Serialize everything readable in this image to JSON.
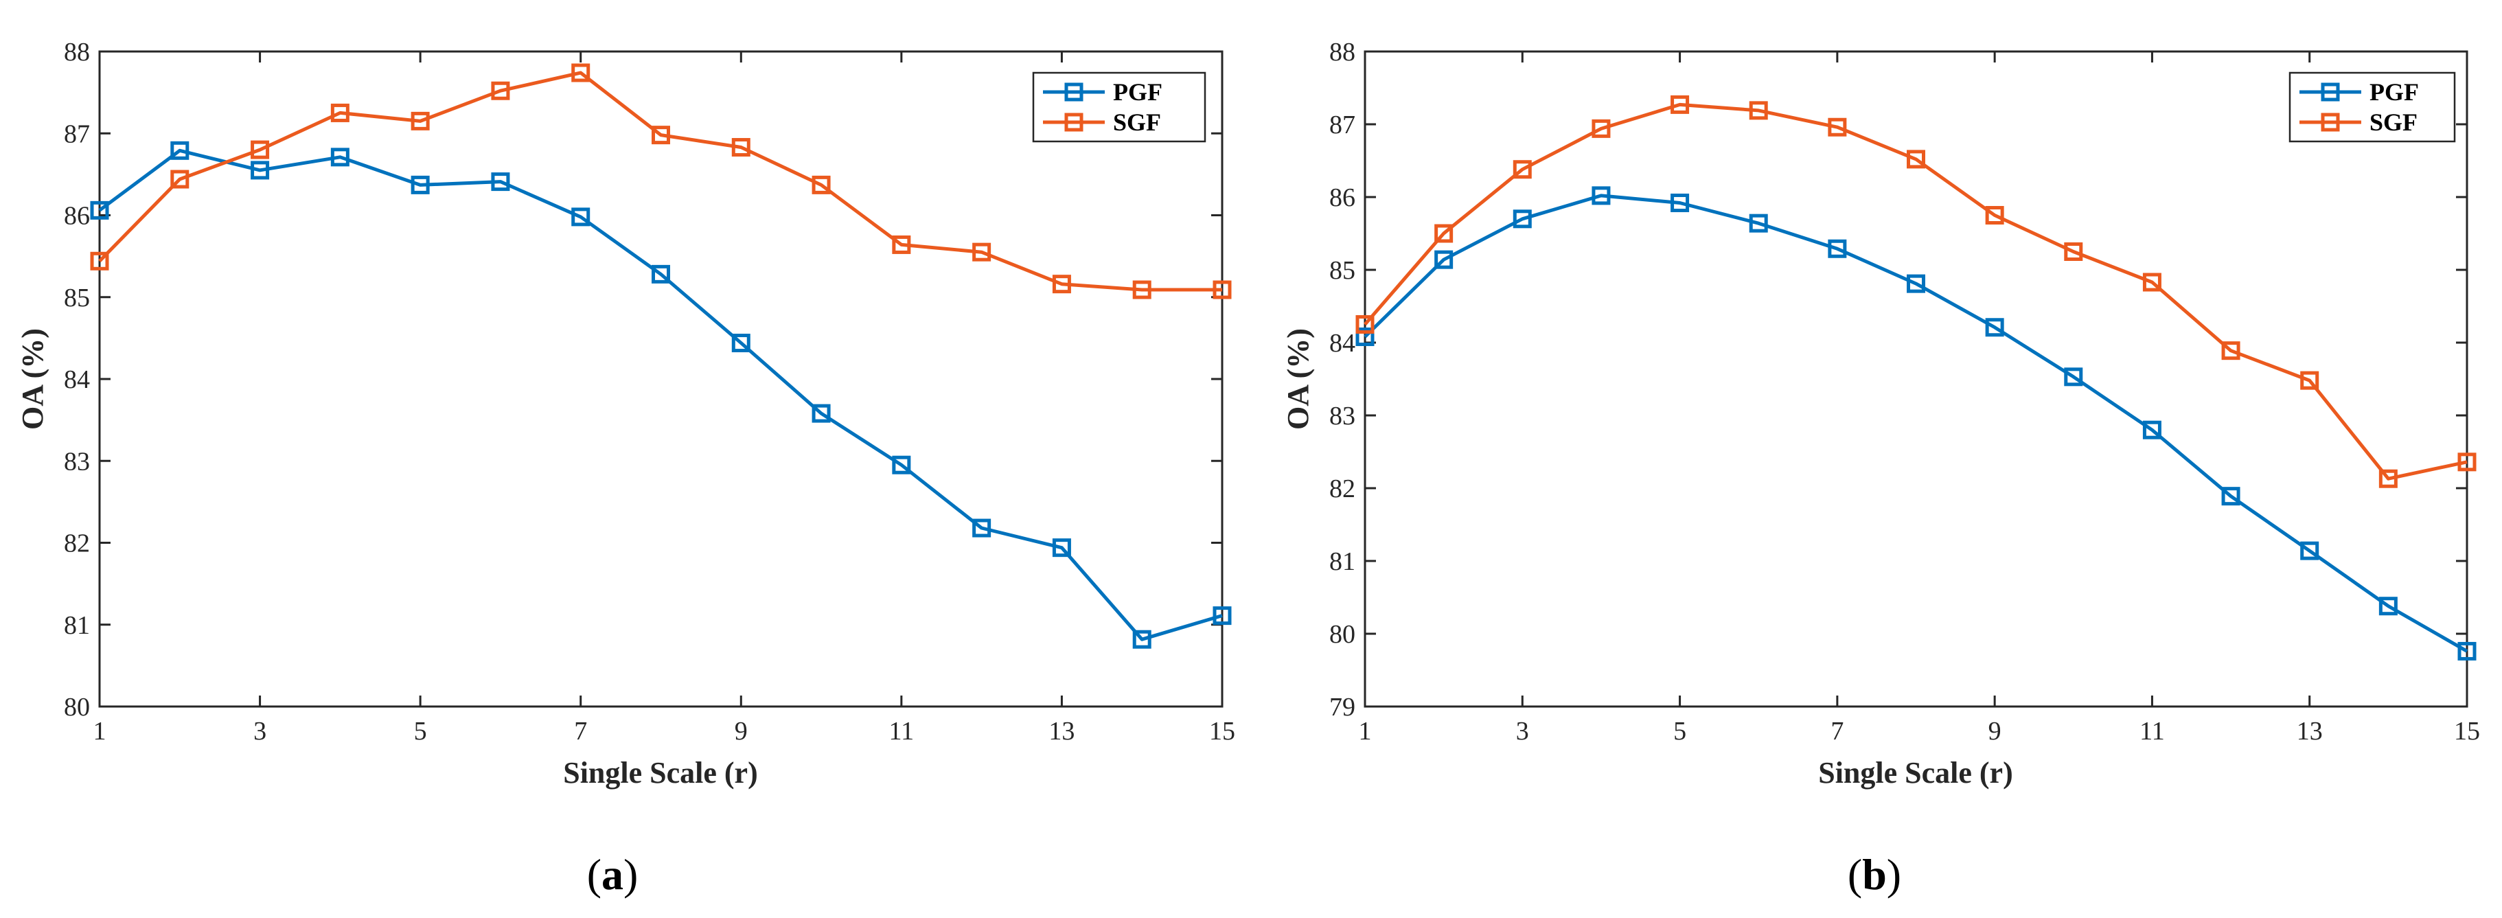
{
  "colors": {
    "PGF": "#0072BD",
    "SGF": "#EB5A1E"
  },
  "chart_data": [
    {
      "type": "line",
      "panel": "a",
      "caption": {
        "open": "(",
        "letter": "a",
        "close": ")"
      },
      "xlabel": "Single Scale (r)",
      "ylabel": "OA (%)",
      "xlim": [
        1,
        15
      ],
      "ylim": [
        80,
        88
      ],
      "xticks": [
        1,
        3,
        5,
        7,
        9,
        11,
        13,
        15
      ],
      "yticks": [
        80,
        81,
        82,
        83,
        84,
        85,
        86,
        87,
        88
      ],
      "x": [
        1,
        2,
        3,
        4,
        5,
        6,
        7,
        8,
        9,
        10,
        11,
        12,
        13,
        14,
        15
      ],
      "legend_position": "top-right",
      "series": [
        {
          "name": "PGF",
          "values": [
            86.06,
            86.79,
            86.55,
            86.71,
            86.37,
            86.41,
            85.98,
            85.28,
            84.44,
            83.58,
            82.95,
            82.18,
            81.94,
            80.82,
            81.11
          ]
        },
        {
          "name": "SGF",
          "values": [
            85.44,
            86.44,
            86.8,
            87.25,
            87.15,
            87.52,
            87.74,
            86.98,
            86.83,
            86.37,
            85.64,
            85.55,
            85.16,
            85.09,
            85.09
          ]
        }
      ]
    },
    {
      "type": "line",
      "panel": "b",
      "caption": {
        "open": "(",
        "letter": "b",
        "close": ")"
      },
      "xlabel": "Single Scale (r)",
      "ylabel": "OA (%)",
      "xlim": [
        1,
        15
      ],
      "ylim": [
        79,
        88
      ],
      "xticks": [
        1,
        3,
        5,
        7,
        9,
        11,
        13,
        15
      ],
      "yticks": [
        79,
        80,
        81,
        82,
        83,
        84,
        85,
        86,
        87,
        88
      ],
      "x": [
        1,
        2,
        3,
        4,
        5,
        6,
        7,
        8,
        9,
        10,
        11,
        12,
        13,
        14,
        15
      ],
      "legend_position": "top-right",
      "series": [
        {
          "name": "PGF",
          "values": [
            84.08,
            85.14,
            85.7,
            86.02,
            85.92,
            85.64,
            85.29,
            84.81,
            84.21,
            83.53,
            82.8,
            81.89,
            81.14,
            80.38,
            79.76
          ]
        },
        {
          "name": "SGF",
          "values": [
            84.25,
            85.5,
            86.38,
            86.94,
            87.27,
            87.19,
            86.96,
            86.52,
            85.75,
            85.25,
            84.83,
            83.89,
            83.48,
            82.13,
            82.36
          ]
        }
      ]
    }
  ]
}
